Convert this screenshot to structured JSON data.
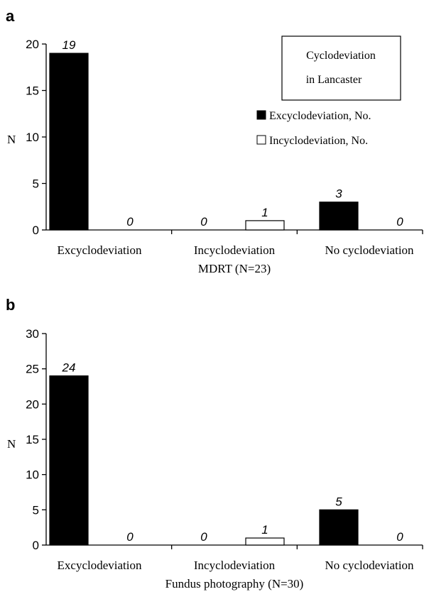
{
  "chart_data": [
    {
      "type": "bar",
      "panel": "a",
      "categories": [
        "Excyclodeviation",
        "Incyclodeviation",
        "No cyclodeviation"
      ],
      "series": [
        {
          "name": "Excyclodeviation, No.",
          "values": [
            19,
            0,
            3
          ],
          "color": "#000000"
        },
        {
          "name": "Incyclodeviation, No.",
          "values": [
            0,
            1,
            0
          ],
          "color": "#ffffff"
        }
      ],
      "data_labels": [
        [
          "19",
          "0",
          "3"
        ],
        [
          "0",
          "1",
          "0"
        ]
      ],
      "ylabel": "N",
      "xlabel": "MDRT (N=23)",
      "ylim": [
        0,
        20
      ],
      "yticks": [
        "0",
        "5",
        "10",
        "15",
        "20"
      ],
      "legend": {
        "title_lines": [
          "Cyclodeviation",
          "in Lancaster"
        ],
        "entries": [
          "Excyclodeviation, No.",
          "Incyclodeviation, No."
        ],
        "placement": "top-right"
      },
      "grid": false
    },
    {
      "type": "bar",
      "panel": "b",
      "categories": [
        "Excyclodeviation",
        "Incyclodeviation",
        "No cyclodeviation"
      ],
      "series": [
        {
          "name": "Excyclodeviation, No.",
          "values": [
            24,
            0,
            5
          ],
          "color": "#000000"
        },
        {
          "name": "Incyclodeviation, No.",
          "values": [
            0,
            1,
            0
          ],
          "color": "#ffffff"
        }
      ],
      "data_labels": [
        [
          "24",
          "0",
          "5"
        ],
        [
          "0",
          "1",
          "0"
        ]
      ],
      "ylabel": "N",
      "xlabel": "Fundus photography (N=30)",
      "ylim": [
        0,
        30
      ],
      "yticks": [
        "0",
        "5",
        "10",
        "15",
        "20",
        "25",
        "30"
      ],
      "grid": false
    }
  ]
}
